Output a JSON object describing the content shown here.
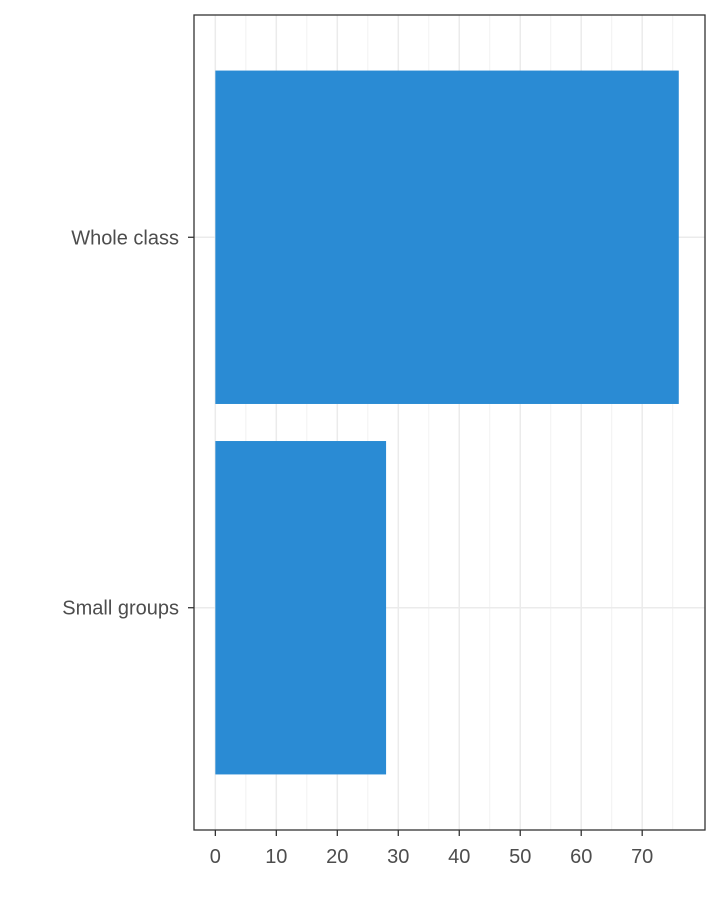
{
  "chart_data": {
    "type": "bar",
    "orientation": "horizontal",
    "categories": [
      "Whole class",
      "Small groups"
    ],
    "values": [
      76,
      28
    ],
    "xlim": [
      -3.5,
      80.3
    ],
    "x_ticks": [
      "0",
      "10",
      "20",
      "30",
      "40",
      "50",
      "60",
      "70"
    ],
    "title": "",
    "xlabel": "",
    "ylabel": "",
    "grid": true,
    "legend": "none",
    "bar_color": "#2A8BD4"
  }
}
